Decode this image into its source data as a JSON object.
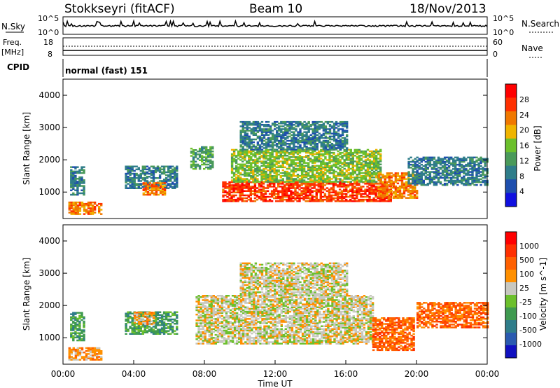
{
  "header": {
    "station": "Stokkseyri (fitACF)",
    "beam": "Beam 10",
    "date": "18/Nov/2013"
  },
  "panels": {
    "nsky": {
      "label": "N.Sky",
      "left_ticks": [
        "10^5",
        "10^0"
      ],
      "right_ticks": [
        "10^5",
        "10^0"
      ],
      "right_label": "N.Search"
    },
    "freq": {
      "label_line1": "Freq.",
      "label_line2": "[MHz]",
      "left_ticks": [
        "18",
        "8"
      ],
      "right_ticks": [
        "60",
        "0"
      ],
      "right_label": "Nave"
    },
    "cpid": {
      "label": "CPID",
      "mode": "normal (fast) 151"
    }
  },
  "colors": {
    "power": [
      "#1010e0",
      "#1e4fae",
      "#2f7d8a",
      "#4a9a5a",
      "#6cc02c",
      "#f0b400",
      "#f07800",
      "#ff3000",
      "#ff0000"
    ],
    "velocity": [
      "#1010c0",
      "#2a5ab0",
      "#2f7d8a",
      "#3f9a50",
      "#6cc02c",
      "#c8c8c0",
      "#ff9000",
      "#ff6000",
      "#ff3000",
      "#ff0000"
    ]
  },
  "chart_data": [
    {
      "type": "heatmap",
      "title": "Power",
      "xlabel": "",
      "ylabel": "Slant Range [km]",
      "colorbar_label": "Power [dB]",
      "colorbar_ticks": [
        "28",
        "24",
        "20",
        "16",
        "12",
        "8",
        "4"
      ],
      "xlim": [
        0,
        24
      ],
      "ylim": [
        180,
        4500
      ],
      "yticks": [
        "1000",
        "2000",
        "3000",
        "4000"
      ],
      "regions": [
        {
          "t0": 0.3,
          "t1": 2.2,
          "r0": 300,
          "r1": 700,
          "level": 6
        },
        {
          "t0": 0.4,
          "t1": 1.2,
          "r0": 900,
          "r1": 1800,
          "level": 2
        },
        {
          "t0": 3.5,
          "t1": 6.5,
          "r0": 1100,
          "r1": 1800,
          "level": 2
        },
        {
          "t0": 4.5,
          "t1": 5.8,
          "r0": 900,
          "r1": 1300,
          "level": 6
        },
        {
          "t0": 7.2,
          "t1": 8.5,
          "r0": 1700,
          "r1": 2400,
          "level": 3
        },
        {
          "t0": 9.0,
          "t1": 18.5,
          "r0": 700,
          "r1": 1300,
          "level": 7
        },
        {
          "t0": 9.5,
          "t1": 18.0,
          "r0": 1300,
          "r1": 2300,
          "level": 4
        },
        {
          "t0": 10.0,
          "t1": 16.0,
          "r0": 2300,
          "r1": 3200,
          "level": 2
        },
        {
          "t0": 17.8,
          "t1": 20.0,
          "r0": 800,
          "r1": 1600,
          "level": 6
        },
        {
          "t0": 19.5,
          "t1": 24.0,
          "r0": 1200,
          "r1": 2100,
          "level": 2
        }
      ]
    },
    {
      "type": "heatmap",
      "title": "Velocity",
      "xlabel": "Time UT",
      "ylabel": "Slant Range [km]",
      "colorbar_label": "Velocity [m s^-1]",
      "colorbar_ticks": [
        "1000",
        "500",
        "100",
        "25",
        "-25",
        "-100",
        "-500",
        "-1000"
      ],
      "xlim": [
        0,
        24
      ],
      "ylim": [
        180,
        4500
      ],
      "xticks": [
        "00:00",
        "04:00",
        "08:00",
        "12:00",
        "16:00",
        "20:00",
        "00:00"
      ],
      "yticks": [
        "1000",
        "2000",
        "3000",
        "4000"
      ],
      "regions": [
        {
          "t0": 0.3,
          "t1": 2.2,
          "r0": 300,
          "r1": 700,
          "level": 6
        },
        {
          "t0": 0.4,
          "t1": 1.2,
          "r0": 900,
          "r1": 1800,
          "level": 3
        },
        {
          "t0": 3.5,
          "t1": 6.5,
          "r0": 1100,
          "r1": 1800,
          "level": 3
        },
        {
          "t0": 4.0,
          "t1": 5.2,
          "r0": 1400,
          "r1": 1800,
          "level": 6
        },
        {
          "t0": 7.5,
          "t1": 17.5,
          "r0": 800,
          "r1": 2300,
          "level": 5
        },
        {
          "t0": 10.0,
          "t1": 16.0,
          "r0": 2300,
          "r1": 3300,
          "level": 5
        },
        {
          "t0": 17.5,
          "t1": 19.8,
          "r0": 600,
          "r1": 1600,
          "level": 7
        },
        {
          "t0": 20.0,
          "t1": 24.0,
          "r0": 1300,
          "r1": 2100,
          "level": 7
        }
      ]
    }
  ]
}
